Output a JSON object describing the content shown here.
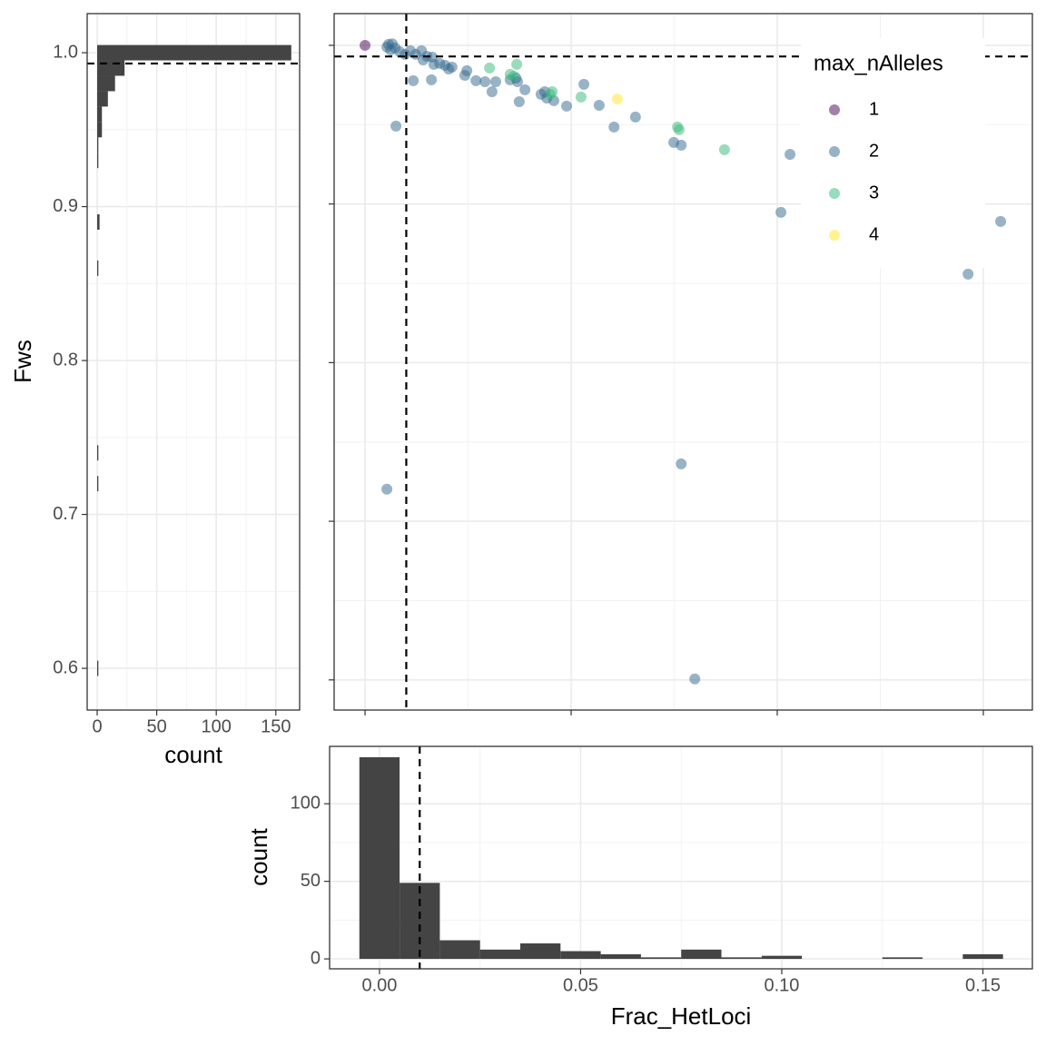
{
  "chart_data": [
    {
      "type": "histogram",
      "orientation": "horizontal",
      "xlabel": "count",
      "ylabel": "Fws",
      "color": "#444444",
      "bins": [
        0.595,
        0.605,
        0.615,
        0.625,
        0.635,
        0.645,
        0.655,
        0.665,
        0.675,
        0.685,
        0.695,
        0.705,
        0.715,
        0.725,
        0.735,
        0.745,
        0.755,
        0.765,
        0.775,
        0.785,
        0.795,
        0.805,
        0.815,
        0.825,
        0.835,
        0.845,
        0.855,
        0.865,
        0.875,
        0.885,
        0.895,
        0.905,
        0.915,
        0.925,
        0.935,
        0.945,
        0.955,
        0.965,
        0.975,
        0.985,
        0.995,
        1.005
      ],
      "values": [
        1,
        0,
        0,
        0,
        0,
        0,
        0,
        0,
        0,
        0,
        0,
        0,
        1,
        0,
        1,
        0,
        0,
        0,
        0,
        0,
        0,
        0,
        0,
        0,
        0,
        0,
        1,
        0,
        0,
        2,
        0,
        0,
        0,
        1,
        1,
        4,
        4,
        9,
        15,
        23,
        163
      ],
      "xlim": [
        -8.4,
        170
      ],
      "ylim": [
        0.5729,
        1.0254
      ],
      "xticks": [
        0,
        50,
        100,
        150
      ],
      "yticks": [
        0.6,
        0.7,
        0.8,
        0.9,
        {
          "value": 1,
          "label": "1.0"
        }
      ],
      "hline": 0.993,
      "grid": true
    },
    {
      "type": "scatter",
      "color_legend_title": "max_nAlleles",
      "legend": "top-right",
      "alpha": 0.5,
      "xlim": [
        -0.0075,
        0.1619
      ],
      "ylim": [
        0.581,
        1.02
      ],
      "xticks": [
        0,
        0.05,
        0.1,
        0.15
      ],
      "yticks": [
        0.6,
        0.7,
        0.8,
        0.9,
        1
      ],
      "hline": 0.993,
      "vline": 0.01,
      "grid": true,
      "series": [
        {
          "name": "1",
          "color": "#440154",
          "x": [
            0
          ],
          "y": [
            1.0
          ]
        },
        {
          "name": "2",
          "color": "#31688e",
          "x": [
            0.0057,
            0.0066,
            0.0053,
            0.0062,
            0.0073,
            0.0084,
            0.0097,
            0.011,
            0.0123,
            0.0137,
            0.0141,
            0.015,
            0.0163,
            0.0167,
            0.0181,
            0.0194,
            0.0203,
            0.0211,
            0.0117,
            0.0161,
            0.0242,
            0.0247,
            0.0269,
            0.0291,
            0.0308,
            0.0317,
            0.0352,
            0.0366,
            0.037,
            0.0374,
            0.0388,
            0.0427,
            0.0436,
            0.0441,
            0.0458,
            0.0489,
            0.0531,
            0.0568,
            0.0604,
            0.0656,
            0.0749,
            0.0767,
            0.0075,
            0.1031,
            0.1009,
            0.1542,
            0.1463,
            0.0767,
            0.0053,
            0.08
          ],
          "y": [
            1.0006,
            1.001,
            0.9989,
            0.9971,
            0.9983,
            0.996,
            0.9943,
            0.9966,
            0.9943,
            0.9966,
            0.9908,
            0.9931,
            0.9926,
            0.988,
            0.9886,
            0.9874,
            0.9851,
            0.9863,
            0.9777,
            0.9783,
            0.9811,
            0.984,
            0.9777,
            0.9771,
            0.9708,
            0.9771,
            0.9783,
            0.9794,
            0.9771,
            0.9645,
            0.972,
            0.9691,
            0.9708,
            0.9668,
            0.9651,
            0.9617,
            0.9754,
            0.9622,
            0.9485,
            0.9548,
            0.9388,
            0.9371,
            0.9491,
            0.9313,
            0.8947,
            0.889,
            0.8558,
            0.7362,
            0.7202,
            0.6006
          ]
        },
        {
          "name": "3",
          "color": "#35b779",
          "x": [
            0.0302,
            0.0368,
            0.0352,
            0.0361,
            0.0454,
            0.0449,
            0.0524,
            0.0758,
            0.0762,
            0.0872
          ],
          "y": [
            0.9857,
            0.988,
            0.9817,
            0.9805,
            0.9708,
            0.9691,
            0.9674,
            0.9485,
            0.9468,
            0.9342
          ]
        },
        {
          "name": "4",
          "color": "#fde725",
          "x": [
            0.0612
          ],
          "y": [
            0.9662
          ]
        }
      ]
    },
    {
      "type": "histogram",
      "orientation": "vertical",
      "xlabel": "Frac_HetLoci",
      "ylabel": "count",
      "color": "#444444",
      "bins": [
        -0.005,
        0.005,
        0.015,
        0.025,
        0.035,
        0.045,
        0.055,
        0.065,
        0.075,
        0.085,
        0.095,
        0.105,
        0.115,
        0.125,
        0.135,
        0.145,
        0.155
      ],
      "values": [
        130,
        49,
        12,
        6,
        10,
        5,
        3,
        1,
        6,
        1,
        2,
        0,
        0,
        1,
        0,
        3
      ],
      "xlim": [
        -0.0124,
        0.1623
      ],
      "ylim": [
        -6.4,
        137
      ],
      "xticks": [
        {
          "value": 0,
          "label": "0.00"
        },
        0.05,
        {
          "value": 0.1,
          "label": "0.10"
        },
        0.15
      ],
      "yticks": [
        0,
        50,
        100
      ],
      "vline": 0.01,
      "grid": true
    }
  ]
}
